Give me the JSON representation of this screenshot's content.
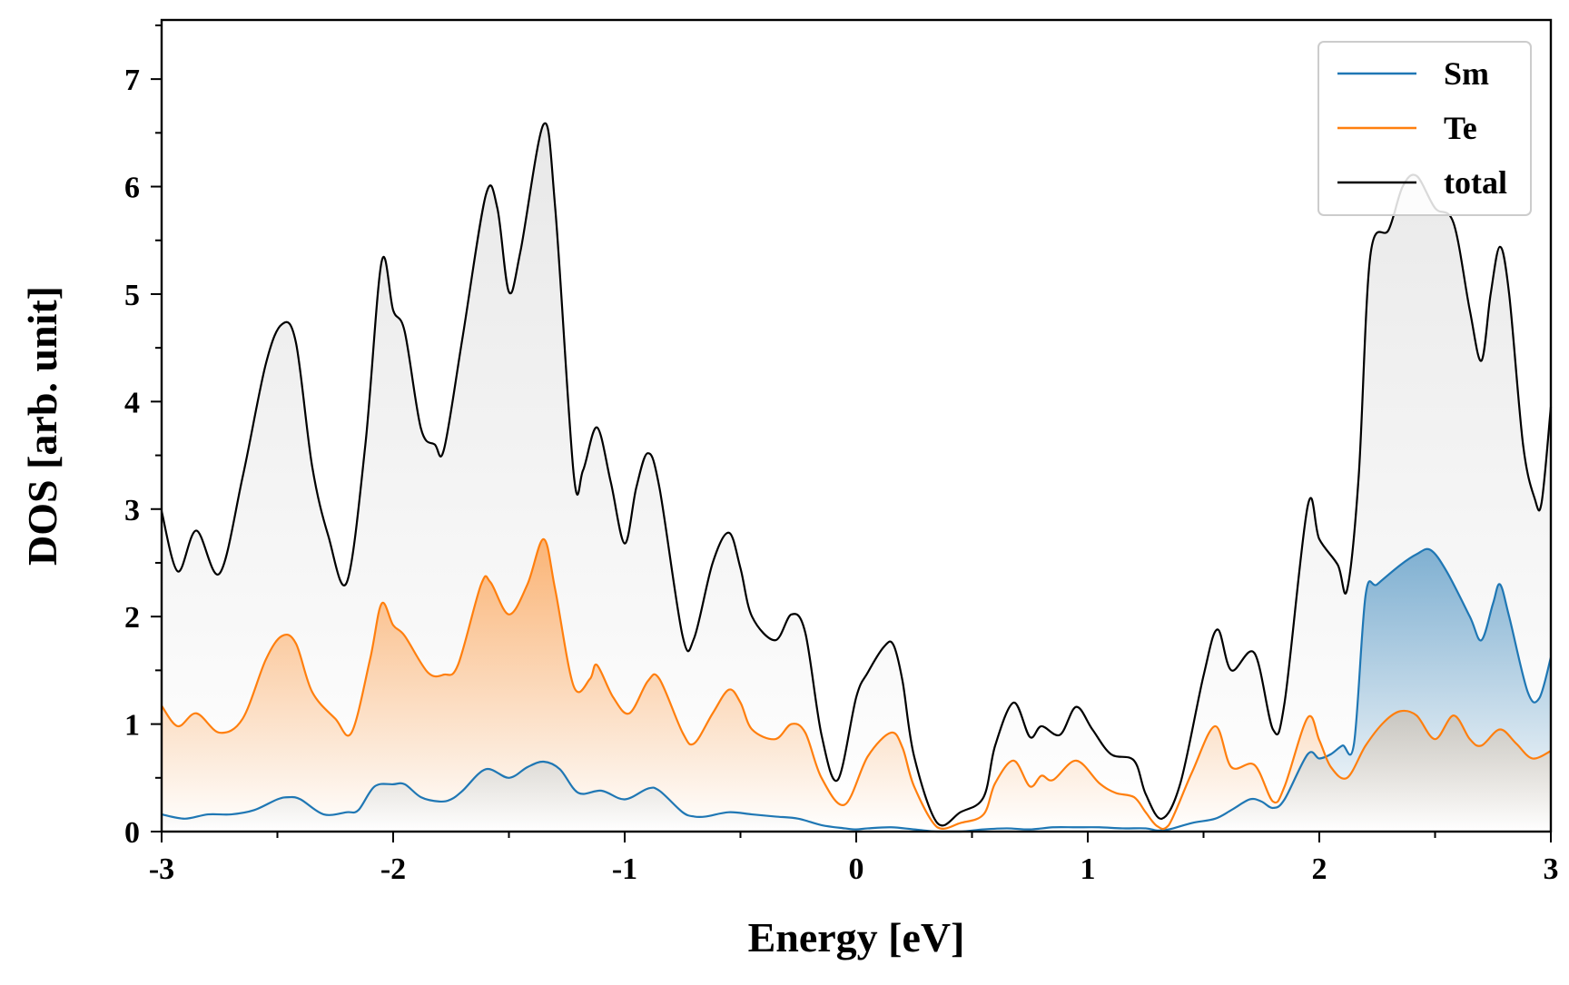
{
  "chart_data": {
    "type": "area",
    "title": "",
    "xlabel": "Energy [eV]",
    "ylabel": "DOS [arb. unit]",
    "xlim": [
      -3,
      3
    ],
    "ylim": [
      0,
      7.55
    ],
    "x_ticks": [
      "-3",
      "-2",
      "-1",
      "0",
      "1",
      "2",
      "3"
    ],
    "y_ticks": [
      "0",
      "1",
      "2",
      "3",
      "4",
      "5",
      "6",
      "7"
    ],
    "grid": false,
    "legend_position": "top-right",
    "series": [
      {
        "name": "Sm",
        "color": "#1f77b4",
        "fill": true,
        "points": [
          [
            -3.0,
            0.16
          ],
          [
            -2.9,
            0.12
          ],
          [
            -2.8,
            0.16
          ],
          [
            -2.7,
            0.16
          ],
          [
            -2.6,
            0.2
          ],
          [
            -2.5,
            0.3
          ],
          [
            -2.45,
            0.32
          ],
          [
            -2.4,
            0.3
          ],
          [
            -2.3,
            0.16
          ],
          [
            -2.2,
            0.18
          ],
          [
            -2.15,
            0.2
          ],
          [
            -2.08,
            0.42
          ],
          [
            -2.0,
            0.44
          ],
          [
            -1.95,
            0.44
          ],
          [
            -1.88,
            0.32
          ],
          [
            -1.8,
            0.28
          ],
          [
            -1.75,
            0.3
          ],
          [
            -1.7,
            0.38
          ],
          [
            -1.6,
            0.58
          ],
          [
            -1.5,
            0.5
          ],
          [
            -1.42,
            0.6
          ],
          [
            -1.35,
            0.65
          ],
          [
            -1.28,
            0.58
          ],
          [
            -1.2,
            0.36
          ],
          [
            -1.1,
            0.38
          ],
          [
            -1.0,
            0.3
          ],
          [
            -0.9,
            0.4
          ],
          [
            -0.85,
            0.38
          ],
          [
            -0.75,
            0.18
          ],
          [
            -0.7,
            0.14
          ],
          [
            -0.65,
            0.14
          ],
          [
            -0.55,
            0.18
          ],
          [
            -0.45,
            0.16
          ],
          [
            -0.35,
            0.14
          ],
          [
            -0.25,
            0.12
          ],
          [
            -0.15,
            0.06
          ],
          [
            -0.05,
            0.03
          ],
          [
            0.0,
            0.02
          ],
          [
            0.05,
            0.03
          ],
          [
            0.15,
            0.04
          ],
          [
            0.25,
            0.02
          ],
          [
            0.35,
            0.0
          ],
          [
            0.45,
            0.0
          ],
          [
            0.55,
            0.02
          ],
          [
            0.65,
            0.03
          ],
          [
            0.75,
            0.02
          ],
          [
            0.85,
            0.04
          ],
          [
            0.95,
            0.04
          ],
          [
            1.05,
            0.04
          ],
          [
            1.15,
            0.03
          ],
          [
            1.25,
            0.03
          ],
          [
            1.3,
            0.01
          ],
          [
            1.35,
            0.02
          ],
          [
            1.45,
            0.08
          ],
          [
            1.55,
            0.12
          ],
          [
            1.62,
            0.2
          ],
          [
            1.7,
            0.3
          ],
          [
            1.75,
            0.28
          ],
          [
            1.8,
            0.22
          ],
          [
            1.85,
            0.3
          ],
          [
            1.95,
            0.72
          ],
          [
            2.0,
            0.68
          ],
          [
            2.05,
            0.72
          ],
          [
            2.1,
            0.8
          ],
          [
            2.15,
            0.82
          ],
          [
            2.2,
            2.2
          ],
          [
            2.25,
            2.3
          ],
          [
            2.35,
            2.48
          ],
          [
            2.42,
            2.58
          ],
          [
            2.48,
            2.62
          ],
          [
            2.55,
            2.42
          ],
          [
            2.65,
            2.0
          ],
          [
            2.7,
            1.78
          ],
          [
            2.75,
            2.12
          ],
          [
            2.78,
            2.3
          ],
          [
            2.82,
            2.0
          ],
          [
            2.9,
            1.3
          ],
          [
            2.95,
            1.24
          ],
          [
            3.0,
            1.62
          ]
        ]
      },
      {
        "name": "Te",
        "color": "#ff7f0e",
        "fill": true,
        "points": [
          [
            -3.0,
            1.17
          ],
          [
            -2.93,
            0.98
          ],
          [
            -2.85,
            1.1
          ],
          [
            -2.75,
            0.92
          ],
          [
            -2.65,
            1.05
          ],
          [
            -2.55,
            1.6
          ],
          [
            -2.48,
            1.82
          ],
          [
            -2.42,
            1.75
          ],
          [
            -2.35,
            1.3
          ],
          [
            -2.25,
            1.05
          ],
          [
            -2.18,
            0.92
          ],
          [
            -2.1,
            1.6
          ],
          [
            -2.05,
            2.12
          ],
          [
            -2.0,
            1.92
          ],
          [
            -1.95,
            1.82
          ],
          [
            -1.85,
            1.48
          ],
          [
            -1.78,
            1.46
          ],
          [
            -1.72,
            1.55
          ],
          [
            -1.62,
            2.3
          ],
          [
            -1.58,
            2.32
          ],
          [
            -1.5,
            2.02
          ],
          [
            -1.42,
            2.3
          ],
          [
            -1.35,
            2.72
          ],
          [
            -1.3,
            2.25
          ],
          [
            -1.22,
            1.35
          ],
          [
            -1.15,
            1.42
          ],
          [
            -1.12,
            1.55
          ],
          [
            -1.05,
            1.25
          ],
          [
            -0.98,
            1.1
          ],
          [
            -0.9,
            1.4
          ],
          [
            -0.85,
            1.42
          ],
          [
            -0.75,
            0.92
          ],
          [
            -0.7,
            0.82
          ],
          [
            -0.62,
            1.1
          ],
          [
            -0.55,
            1.32
          ],
          [
            -0.5,
            1.2
          ],
          [
            -0.45,
            0.95
          ],
          [
            -0.35,
            0.86
          ],
          [
            -0.28,
            1.0
          ],
          [
            -0.22,
            0.92
          ],
          [
            -0.15,
            0.5
          ],
          [
            -0.05,
            0.25
          ],
          [
            0.05,
            0.7
          ],
          [
            0.15,
            0.92
          ],
          [
            0.2,
            0.78
          ],
          [
            0.25,
            0.42
          ],
          [
            0.35,
            0.04
          ],
          [
            0.45,
            0.08
          ],
          [
            0.55,
            0.16
          ],
          [
            0.6,
            0.45
          ],
          [
            0.68,
            0.66
          ],
          [
            0.75,
            0.42
          ],
          [
            0.8,
            0.52
          ],
          [
            0.85,
            0.48
          ],
          [
            0.95,
            0.66
          ],
          [
            1.05,
            0.45
          ],
          [
            1.12,
            0.36
          ],
          [
            1.2,
            0.32
          ],
          [
            1.25,
            0.18
          ],
          [
            1.3,
            0.05
          ],
          [
            1.35,
            0.06
          ],
          [
            1.45,
            0.55
          ],
          [
            1.55,
            0.98
          ],
          [
            1.62,
            0.6
          ],
          [
            1.72,
            0.62
          ],
          [
            1.8,
            0.28
          ],
          [
            1.85,
            0.42
          ],
          [
            1.95,
            1.06
          ],
          [
            2.0,
            0.85
          ],
          [
            2.05,
            0.6
          ],
          [
            2.12,
            0.5
          ],
          [
            2.2,
            0.8
          ],
          [
            2.28,
            1.02
          ],
          [
            2.35,
            1.12
          ],
          [
            2.42,
            1.08
          ],
          [
            2.5,
            0.86
          ],
          [
            2.58,
            1.08
          ],
          [
            2.65,
            0.86
          ],
          [
            2.7,
            0.8
          ],
          [
            2.78,
            0.95
          ],
          [
            2.85,
            0.82
          ],
          [
            2.92,
            0.68
          ],
          [
            3.0,
            0.75
          ]
        ]
      },
      {
        "name": "total",
        "color": "#000000",
        "fill": true,
        "points": [
          [
            -3.0,
            2.98
          ],
          [
            -2.93,
            2.42
          ],
          [
            -2.85,
            2.8
          ],
          [
            -2.75,
            2.4
          ],
          [
            -2.65,
            3.3
          ],
          [
            -2.55,
            4.35
          ],
          [
            -2.48,
            4.72
          ],
          [
            -2.42,
            4.55
          ],
          [
            -2.35,
            3.4
          ],
          [
            -2.28,
            2.75
          ],
          [
            -2.2,
            2.32
          ],
          [
            -2.12,
            3.6
          ],
          [
            -2.05,
            5.3
          ],
          [
            -2.0,
            4.85
          ],
          [
            -1.95,
            4.65
          ],
          [
            -1.88,
            3.75
          ],
          [
            -1.82,
            3.6
          ],
          [
            -1.78,
            3.56
          ],
          [
            -1.7,
            4.6
          ],
          [
            -1.6,
            5.92
          ],
          [
            -1.55,
            5.8
          ],
          [
            -1.5,
            5.02
          ],
          [
            -1.45,
            5.4
          ],
          [
            -1.35,
            6.58
          ],
          [
            -1.3,
            5.8
          ],
          [
            -1.22,
            3.32
          ],
          [
            -1.18,
            3.36
          ],
          [
            -1.12,
            3.76
          ],
          [
            -1.06,
            3.25
          ],
          [
            -1.0,
            2.68
          ],
          [
            -0.95,
            3.2
          ],
          [
            -0.9,
            3.52
          ],
          [
            -0.85,
            3.2
          ],
          [
            -0.75,
            1.82
          ],
          [
            -0.7,
            1.8
          ],
          [
            -0.62,
            2.5
          ],
          [
            -0.55,
            2.78
          ],
          [
            -0.5,
            2.45
          ],
          [
            -0.45,
            2.0
          ],
          [
            -0.35,
            1.78
          ],
          [
            -0.28,
            2.02
          ],
          [
            -0.22,
            1.85
          ],
          [
            -0.15,
            0.9
          ],
          [
            -0.08,
            0.48
          ],
          [
            0.0,
            1.25
          ],
          [
            0.05,
            1.48
          ],
          [
            0.12,
            1.72
          ],
          [
            0.16,
            1.74
          ],
          [
            0.2,
            1.4
          ],
          [
            0.25,
            0.7
          ],
          [
            0.35,
            0.08
          ],
          [
            0.45,
            0.18
          ],
          [
            0.55,
            0.32
          ],
          [
            0.6,
            0.8
          ],
          [
            0.68,
            1.2
          ],
          [
            0.75,
            0.88
          ],
          [
            0.8,
            0.98
          ],
          [
            0.88,
            0.9
          ],
          [
            0.95,
            1.16
          ],
          [
            1.02,
            0.95
          ],
          [
            1.1,
            0.72
          ],
          [
            1.2,
            0.66
          ],
          [
            1.25,
            0.35
          ],
          [
            1.32,
            0.12
          ],
          [
            1.4,
            0.45
          ],
          [
            1.5,
            1.45
          ],
          [
            1.56,
            1.88
          ],
          [
            1.62,
            1.5
          ],
          [
            1.72,
            1.66
          ],
          [
            1.8,
            0.95
          ],
          [
            1.85,
            1.2
          ],
          [
            1.95,
            3.03
          ],
          [
            2.0,
            2.72
          ],
          [
            2.08,
            2.48
          ],
          [
            2.12,
            2.25
          ],
          [
            2.17,
            3.3
          ],
          [
            2.22,
            5.35
          ],
          [
            2.3,
            5.6
          ],
          [
            2.36,
            6.0
          ],
          [
            2.42,
            6.1
          ],
          [
            2.5,
            5.8
          ],
          [
            2.58,
            5.66
          ],
          [
            2.65,
            4.85
          ],
          [
            2.7,
            4.38
          ],
          [
            2.74,
            5.0
          ],
          [
            2.78,
            5.44
          ],
          [
            2.82,
            5.0
          ],
          [
            2.88,
            3.6
          ],
          [
            2.93,
            3.1
          ],
          [
            2.96,
            3.06
          ],
          [
            3.0,
            3.95
          ]
        ]
      }
    ]
  }
}
